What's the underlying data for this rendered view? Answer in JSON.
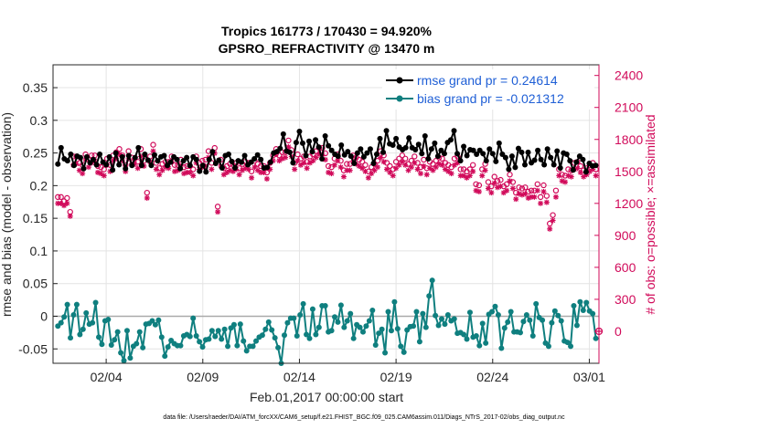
{
  "chart_data": {
    "type": "line",
    "title": [
      "Tropics 161773 / 170430 = 94.920%",
      "GPSRO_REFRACTIVITY @ 13470 m"
    ],
    "xlabel": "Feb.01,2017 00:00:00 start",
    "ylabel": "rmse and bias (model - observation)",
    "ylabel_right": "# of obs: o=possible; ×=assimilated",
    "x_ticks": [
      {
        "day": 3,
        "label": "02/04"
      },
      {
        "day": 8,
        "label": "02/09"
      },
      {
        "day": 13,
        "label": "02/14"
      },
      {
        "day": 18,
        "label": "02/19"
      },
      {
        "day": 23,
        "label": "02/24"
      },
      {
        "day": 28,
        "label": "03/01"
      }
    ],
    "xlim": [
      0.25,
      28.5
    ],
    "ylim": [
      -0.072,
      0.385
    ],
    "y_ticks": [
      -0.05,
      0,
      0.05,
      0.1,
      0.15,
      0.2,
      0.25,
      0.3,
      0.35
    ],
    "y_ticklabels": [
      "-0.05",
      "0",
      "0.05",
      "0.1",
      "0.15",
      "0.2",
      "0.25",
      "0.3",
      "0.35"
    ],
    "ylim_right": [
      -300,
      2500
    ],
    "y_ticks_right": [
      0,
      300,
      600,
      900,
      1200,
      1500,
      1800,
      2100,
      2400
    ],
    "grid": true,
    "legend_position": "top-right",
    "colors": {
      "rmse": "#000000",
      "bias": "#0f7f7f",
      "obs": "#d10a5a",
      "zero_line": "#aaaaaa",
      "legend_text": "#1f5fd6",
      "grid": "#e4e4e4"
    },
    "series": [
      {
        "name": "rmse grand pr = 0.24614",
        "key": "rmse",
        "values": [
          0.233,
          0.258,
          0.241,
          0.238,
          0.248,
          0.231,
          0.245,
          0.243,
          0.226,
          0.244,
          0.235,
          0.24,
          0.232,
          0.248,
          0.236,
          0.232,
          0.244,
          0.224,
          0.25,
          0.232,
          0.244,
          0.226,
          0.246,
          0.231,
          0.243,
          0.258,
          0.231,
          0.248,
          0.239,
          0.231,
          0.247,
          0.238,
          0.244,
          0.246,
          0.231,
          0.236,
          0.244,
          0.24,
          0.226,
          0.238,
          0.243,
          0.231,
          0.244,
          0.24,
          0.222,
          0.231,
          0.221,
          0.24,
          0.252,
          0.234,
          0.239,
          0.227,
          0.246,
          0.248,
          0.237,
          0.227,
          0.238,
          0.236,
          0.246,
          0.232,
          0.236,
          0.241,
          0.247,
          0.24,
          0.227,
          0.228,
          0.236,
          0.25,
          0.252,
          0.257,
          0.279,
          0.253,
          0.251,
          0.235,
          0.266,
          0.283,
          0.265,
          0.246,
          0.268,
          0.252,
          0.27,
          0.259,
          0.241,
          0.276,
          0.261,
          0.254,
          0.248,
          0.245,
          0.262,
          0.247,
          0.252,
          0.245,
          0.234,
          0.25,
          0.256,
          0.244,
          0.25,
          0.256,
          0.234,
          0.248,
          0.272,
          0.251,
          0.284,
          0.264,
          0.262,
          0.272,
          0.259,
          0.255,
          0.258,
          0.273,
          0.258,
          0.255,
          0.263,
          0.249,
          0.276,
          0.241,
          0.256,
          0.265,
          0.245,
          0.254,
          0.249,
          0.266,
          0.27,
          0.284,
          0.249,
          0.238,
          0.26,
          0.246,
          0.255,
          0.254,
          0.248,
          0.254,
          0.249,
          0.238,
          0.256,
          0.249,
          0.237,
          0.265,
          0.248,
          0.243,
          0.225,
          0.245,
          0.228,
          0.257,
          0.251,
          0.232,
          0.251,
          0.235,
          0.239,
          0.254,
          0.24,
          0.232,
          0.256,
          0.243,
          0.232,
          0.253,
          0.227,
          0.25,
          0.248,
          0.238,
          0.224,
          0.236,
          0.245,
          0.24,
          0.221,
          0.234,
          0.23,
          0.231
        ]
      },
      {
        "name": "bias grand pr = -0.021312",
        "key": "bias",
        "values": [
          -0.015,
          -0.01,
          -0.001,
          0.018,
          -0.033,
          0.002,
          0.018,
          -0.028,
          -0.02,
          0.005,
          -0.012,
          -0.01,
          0.021,
          -0.032,
          -0.043,
          -0.007,
          -0.005,
          -0.044,
          -0.036,
          -0.024,
          -0.056,
          -0.068,
          -0.022,
          -0.064,
          -0.046,
          -0.042,
          -0.024,
          -0.048,
          -0.012,
          -0.011,
          -0.007,
          -0.013,
          -0.006,
          -0.032,
          -0.061,
          -0.047,
          -0.037,
          -0.042,
          -0.045,
          -0.045,
          -0.03,
          -0.028,
          -0.031,
          -0.003,
          -0.03,
          -0.039,
          -0.047,
          -0.036,
          -0.035,
          -0.022,
          -0.031,
          -0.022,
          -0.035,
          -0.02,
          -0.046,
          -0.018,
          -0.013,
          -0.045,
          -0.012,
          -0.038,
          -0.053,
          -0.046,
          -0.046,
          -0.038,
          -0.032,
          -0.029,
          -0.02,
          -0.009,
          -0.021,
          -0.033,
          -0.048,
          -0.072,
          -0.029,
          -0.01,
          -0.003,
          -0.003,
          -0.03,
          0.002,
          0.019,
          -0.028,
          -0.034,
          0.011,
          -0.028,
          -0.017,
          0.016,
          0.016,
          -0.024,
          -0.022,
          -0.001,
          -0.009,
          0.017,
          -0.017,
          -0.007,
          0.004,
          -0.034,
          -0.013,
          -0.017,
          -0.024,
          -0.015,
          -0.007,
          0.009,
          -0.044,
          -0.026,
          -0.02,
          -0.056,
          0.007,
          -0.022,
          0.022,
          -0.019,
          -0.046,
          -0.055,
          -0.021,
          -0.016,
          -0.015,
          0.007,
          -0.039,
          0.004,
          -0.017,
          0.031,
          0.055,
          0.001,
          -0.014,
          -0.004,
          -0.012,
          0.002,
          -0.007,
          -0.004,
          -0.026,
          -0.025,
          -0.028,
          -0.035,
          0.006,
          -0.032,
          -0.03,
          -0.045,
          -0.011,
          -0.041,
          0.003,
          0.007,
          0.015,
          0.002,
          -0.049,
          -0.018,
          -0.009,
          0.007,
          -0.024,
          -0.024,
          -0.025,
          -0.008,
          0.002,
          -0.006,
          -0.03,
          0.019,
          -0.002,
          -0.006,
          -0.041,
          -0.046,
          -0.01,
          0.008,
          0.001,
          -0.007,
          -0.038,
          -0.04,
          -0.046,
          0.016,
          -0.014,
          0.022,
          0.009,
          0.021,
          0.008,
          0.004,
          -0.034
        ]
      },
      {
        "name": "possible",
        "key": "possible",
        "axis": "right",
        "values": [
          1260,
          1260,
          1220,
          1250,
          1120,
          1640,
          1640,
          1580,
          1560,
          1660,
          1610,
          1650,
          1650,
          1550,
          1540,
          1520,
          1620,
          1560,
          1650,
          1680,
          1710,
          1650,
          1560,
          1690,
          1630,
          1620,
          1590,
          1710,
          1600,
          1300,
          1640,
          1750,
          1580,
          1530,
          1570,
          1590,
          1590,
          1640,
          1560,
          1560,
          1610,
          1540,
          1550,
          1550,
          1520,
          1640,
          1580,
          1600,
          1610,
          1690,
          1580,
          1720,
          1170,
          1610,
          1530,
          1550,
          1570,
          1560,
          1580,
          1530,
          1570,
          1590,
          1580,
          1500,
          1600,
          1570,
          1550,
          1550,
          1490,
          1580,
          1650,
          1710,
          1650,
          1680,
          1680,
          1790,
          1700,
          1580,
          1660,
          1620,
          1640,
          1590,
          1640,
          1660,
          1690,
          1720,
          1720,
          1670,
          1550,
          1540,
          1620,
          1660,
          1600,
          1510,
          1570,
          1570,
          1650,
          1630,
          1610,
          1590,
          1560,
          1500,
          1540,
          1570,
          1600,
          1690,
          1650,
          1580,
          1550,
          1520,
          1590,
          1620,
          1650,
          1620,
          1570,
          1600,
          1640,
          1580,
          1540,
          1610,
          1530,
          1590,
          1570,
          1600,
          1630,
          1620,
          1580,
          1560,
          1540,
          1620,
          1640,
          1520,
          1520,
          1500,
          1520,
          1560,
          1380,
          1370,
          1520,
          1570,
          1400,
          1360,
          1450,
          1410,
          1420,
          1360,
          1380,
          1470,
          1400,
          1300,
          1350,
          1340,
          1350,
          1310,
          1320,
          1320,
          1380,
          1260,
          1370,
          1270,
          1010,
          1090,
          1320,
          1520,
          1470,
          1460,
          1520,
          1510,
          1580,
          1590,
          1550,
          1510,
          1530,
          1560,
          1580,
          1520
        ]
      },
      {
        "name": "assimilated",
        "key": "assimilated",
        "axis": "right",
        "values": [
          1200,
          1200,
          1180,
          1200,
          1080,
          1560,
          1570,
          1510,
          1480,
          1610,
          1540,
          1580,
          1600,
          1490,
          1480,
          1460,
          1560,
          1500,
          1600,
          1620,
          1660,
          1600,
          1500,
          1620,
          1570,
          1570,
          1530,
          1640,
          1550,
          1250,
          1590,
          1690,
          1520,
          1470,
          1510,
          1540,
          1530,
          1590,
          1500,
          1510,
          1550,
          1480,
          1490,
          1490,
          1460,
          1580,
          1520,
          1540,
          1550,
          1630,
          1520,
          1670,
          1120,
          1550,
          1470,
          1490,
          1510,
          1500,
          1520,
          1470,
          1510,
          1530,
          1520,
          1440,
          1540,
          1510,
          1490,
          1490,
          1430,
          1520,
          1600,
          1660,
          1600,
          1620,
          1630,
          1730,
          1640,
          1520,
          1600,
          1560,
          1580,
          1530,
          1580,
          1600,
          1630,
          1660,
          1660,
          1610,
          1490,
          1480,
          1560,
          1600,
          1540,
          1450,
          1510,
          1510,
          1590,
          1570,
          1550,
          1530,
          1500,
          1440,
          1480,
          1510,
          1540,
          1630,
          1590,
          1520,
          1490,
          1460,
          1530,
          1560,
          1590,
          1560,
          1510,
          1540,
          1580,
          1520,
          1480,
          1550,
          1470,
          1530,
          1510,
          1540,
          1570,
          1560,
          1520,
          1500,
          1480,
          1560,
          1580,
          1460,
          1460,
          1440,
          1460,
          1500,
          1320,
          1310,
          1460,
          1510,
          1340,
          1300,
          1390,
          1350,
          1360,
          1300,
          1320,
          1410,
          1340,
          1240,
          1290,
          1280,
          1290,
          1250,
          1260,
          1260,
          1320,
          1200,
          1310,
          1210,
          960,
          1040,
          1260,
          1460,
          1410,
          1400,
          1460,
          1450,
          1520,
          1530,
          1490,
          1450,
          1470,
          1500,
          1520,
          1460
        ]
      }
    ],
    "annotations": [
      "data file: /Users/raeder/DAI/ATM_forcXX/CAM6_setup/f.e21.FHIST_BGC.f09_025.CAM6assim.011/Diags_NTrS_2017-02/obs_diag_output.nc"
    ]
  }
}
